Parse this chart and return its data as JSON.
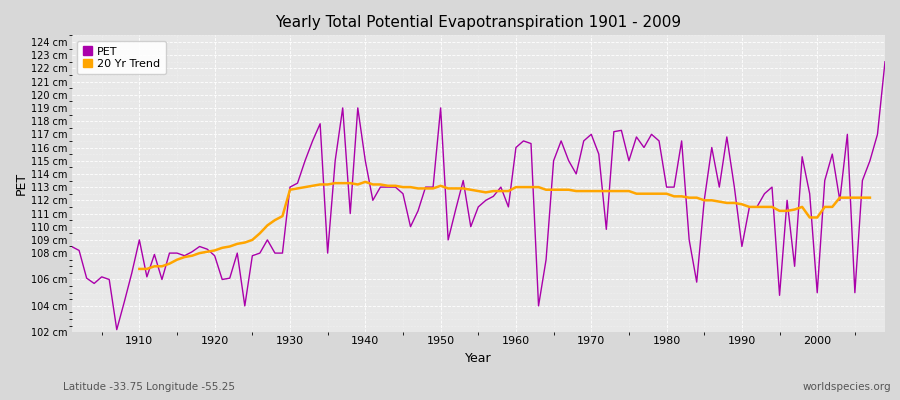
{
  "title": "Yearly Total Potential Evapotranspiration 1901 - 2009",
  "xlabel": "Year",
  "ylabel": "PET",
  "subtitle_left": "Latitude -33.75 Longitude -55.25",
  "subtitle_right": "worldspecies.org",
  "pet_color": "#aa00aa",
  "trend_color": "#ffa500",
  "fig_bg_color": "#d8d8d8",
  "plot_bg_color": "#e8e8e8",
  "ylim": [
    102,
    124.5
  ],
  "xlim": [
    1901,
    2009
  ],
  "years": [
    1901,
    1902,
    1903,
    1904,
    1905,
    1906,
    1907,
    1908,
    1909,
    1910,
    1911,
    1912,
    1913,
    1914,
    1915,
    1916,
    1917,
    1918,
    1919,
    1920,
    1921,
    1922,
    1923,
    1924,
    1925,
    1926,
    1927,
    1928,
    1929,
    1930,
    1931,
    1932,
    1933,
    1934,
    1935,
    1936,
    1937,
    1938,
    1939,
    1940,
    1941,
    1942,
    1943,
    1944,
    1945,
    1946,
    1947,
    1948,
    1949,
    1950,
    1951,
    1952,
    1953,
    1954,
    1955,
    1956,
    1957,
    1958,
    1959,
    1960,
    1961,
    1962,
    1963,
    1964,
    1965,
    1966,
    1967,
    1968,
    1969,
    1970,
    1971,
    1972,
    1973,
    1974,
    1975,
    1976,
    1977,
    1978,
    1979,
    1980,
    1981,
    1982,
    1983,
    1984,
    1985,
    1986,
    1987,
    1988,
    1989,
    1990,
    1991,
    1992,
    1993,
    1994,
    1995,
    1996,
    1997,
    1998,
    1999,
    2000,
    2001,
    2002,
    2003,
    2004,
    2005,
    2006,
    2007,
    2008,
    2009
  ],
  "pet": [
    108.5,
    108.2,
    106.1,
    105.7,
    106.2,
    106.0,
    102.2,
    104.3,
    106.5,
    109.0,
    106.2,
    107.9,
    106.0,
    108.0,
    108.0,
    107.8,
    108.1,
    108.5,
    108.3,
    107.8,
    106.0,
    106.1,
    108.0,
    104.0,
    107.8,
    108.0,
    109.0,
    108.0,
    108.0,
    113.0,
    113.3,
    115.0,
    116.5,
    117.8,
    108.0,
    115.0,
    119.0,
    111.0,
    119.0,
    115.0,
    112.0,
    113.0,
    113.0,
    113.0,
    112.5,
    110.0,
    111.2,
    113.0,
    113.0,
    119.0,
    109.0,
    111.3,
    113.5,
    110.0,
    111.5,
    112.0,
    112.3,
    113.0,
    111.5,
    116.0,
    116.5,
    116.3,
    104.0,
    107.5,
    115.0,
    116.5,
    115.0,
    114.0,
    116.5,
    117.0,
    115.5,
    109.8,
    117.2,
    117.3,
    115.0,
    116.8,
    116.0,
    117.0,
    116.5,
    113.0,
    113.0,
    116.5,
    109.0,
    105.8,
    112.0,
    116.0,
    113.0,
    116.8,
    113.0,
    108.5,
    111.5,
    111.5,
    112.5,
    113.0,
    104.8,
    112.0,
    107.0,
    115.3,
    112.5,
    105.0,
    113.5,
    115.5,
    112.0,
    117.0,
    105.0,
    113.5,
    115.0,
    117.0,
    122.5
  ],
  "trend_years": [
    1910,
    1911,
    1912,
    1913,
    1914,
    1915,
    1916,
    1917,
    1918,
    1919,
    1920,
    1921,
    1922,
    1923,
    1924,
    1925,
    1926,
    1927,
    1928,
    1929,
    1930,
    1931,
    1932,
    1933,
    1934,
    1935,
    1936,
    1937,
    1938,
    1939,
    1940,
    1941,
    1942,
    1943,
    1944,
    1945,
    1946,
    1947,
    1948,
    1949,
    1950,
    1951,
    1952,
    1953,
    1954,
    1955,
    1956,
    1957,
    1958,
    1959,
    1960,
    1961,
    1962,
    1963,
    1964,
    1965,
    1966,
    1967,
    1968,
    1969,
    1970,
    1971,
    1972,
    1973,
    1974,
    1975,
    1976,
    1977,
    1978,
    1979,
    1980,
    1981,
    1982,
    1983,
    1984,
    1985,
    1986,
    1987,
    1988,
    1989,
    1990,
    1991,
    1992,
    1993,
    1994,
    1995,
    1996,
    1997,
    1998,
    1999,
    2000,
    2001,
    2002,
    2003,
    2004,
    2005,
    2006,
    2007
  ],
  "trend": [
    106.8,
    106.8,
    107.0,
    107.0,
    107.2,
    107.5,
    107.7,
    107.8,
    108.0,
    108.1,
    108.2,
    108.4,
    108.5,
    108.7,
    108.8,
    109.0,
    109.5,
    110.1,
    110.5,
    110.8,
    112.8,
    112.9,
    113.0,
    113.1,
    113.2,
    113.2,
    113.3,
    113.3,
    113.3,
    113.2,
    113.4,
    113.2,
    113.2,
    113.1,
    113.1,
    113.0,
    113.0,
    112.9,
    112.9,
    112.9,
    113.1,
    112.9,
    112.9,
    112.9,
    112.8,
    112.7,
    112.6,
    112.7,
    112.7,
    112.7,
    113.0,
    113.0,
    113.0,
    113.0,
    112.8,
    112.8,
    112.8,
    112.8,
    112.7,
    112.7,
    112.7,
    112.7,
    112.7,
    112.7,
    112.7,
    112.7,
    112.5,
    112.5,
    112.5,
    112.5,
    112.5,
    112.3,
    112.3,
    112.2,
    112.2,
    112.0,
    112.0,
    111.9,
    111.8,
    111.8,
    111.7,
    111.5,
    111.5,
    111.5,
    111.5,
    111.2,
    111.2,
    111.3,
    111.5,
    110.7,
    110.7,
    111.5,
    111.5,
    112.2,
    112.2,
    112.2,
    112.2,
    112.2
  ]
}
